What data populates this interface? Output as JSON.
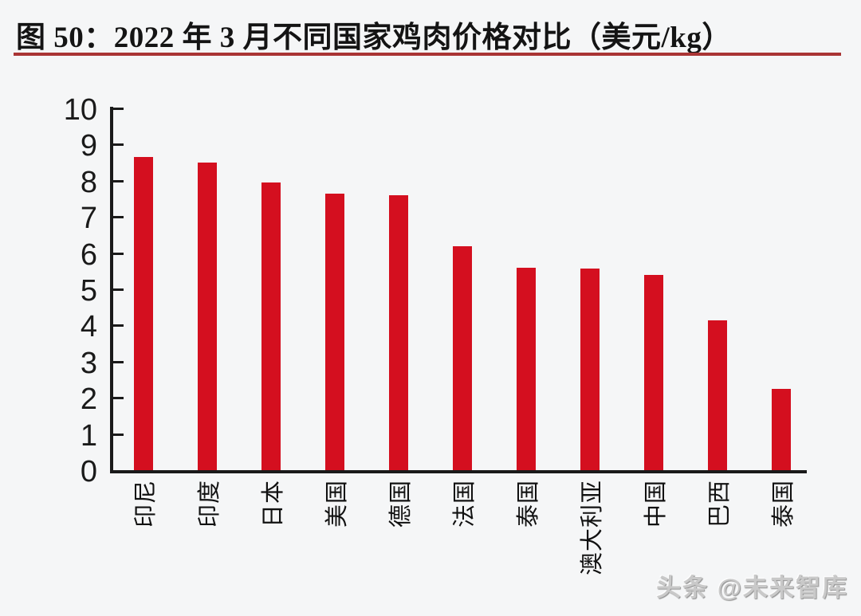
{
  "figure": {
    "title": "图 50：2022 年 3 月不同国家鸡肉价格对比（美元/kg）",
    "underline_color": "#a93434",
    "watermark": "头条 @未来智库"
  },
  "chart_data": {
    "type": "bar",
    "title": "2022 年 3 月不同国家鸡肉价格对比（美元/kg）",
    "unit": "美元/kg",
    "categories": [
      "印尼",
      "印度",
      "日本",
      "美国",
      "德国",
      "法国",
      "泰国",
      "澳大利亚",
      "中国",
      "巴西",
      "泰国"
    ],
    "values": [
      8.65,
      8.5,
      7.95,
      7.65,
      7.6,
      6.2,
      5.6,
      5.58,
      5.4,
      4.15,
      2.25
    ],
    "xlabel": "",
    "ylabel": "",
    "ylim": [
      0,
      10
    ],
    "yticks": [
      0,
      1,
      2,
      3,
      4,
      5,
      6,
      7,
      8,
      9,
      10
    ],
    "grid": false,
    "legend": null,
    "bar_color": "#d40f1f",
    "axis_color": "#1a1a1a",
    "tick_direction": "in"
  }
}
